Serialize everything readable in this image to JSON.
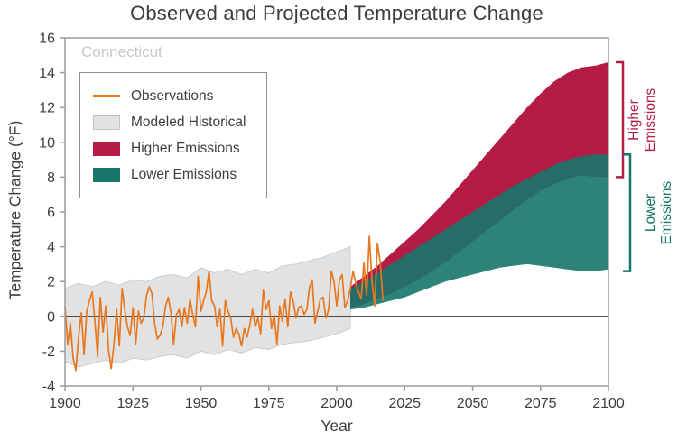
{
  "title": "Observed and Projected Temperature Change",
  "region": "Connecticut",
  "axes": {
    "xlabel": "Year",
    "ylabel": "Temperature Change (°F)"
  },
  "legend": {
    "items": [
      {
        "label": "Observations",
        "type": "line",
        "color": "#e87820"
      },
      {
        "label": "Modeled Historical",
        "type": "fill",
        "color": "#e2e2e2"
      },
      {
        "label": "Higher Emissions",
        "type": "fill",
        "color": "#b41c45"
      },
      {
        "label": "Lower Emissions",
        "type": "fill",
        "color": "#17756a"
      }
    ]
  },
  "chart_data": {
    "type": "area",
    "title": "Observed and Projected Temperature Change",
    "xlabel": "Year",
    "ylabel": "Temperature Change (°F)",
    "xlim": [
      1900,
      2100
    ],
    "ylim": [
      -4,
      16
    ],
    "xticks": [
      1900,
      1925,
      1950,
      1975,
      2000,
      2025,
      2050,
      2075,
      2100
    ],
    "yticks": [
      -4,
      -2,
      0,
      2,
      4,
      6,
      8,
      10,
      12,
      14,
      16
    ],
    "grid": false,
    "legend_position": "upper-left",
    "series": [
      {
        "name": "Modeled Historical",
        "type": "band",
        "color": "#e2e2e2",
        "border": "#cdcdcd",
        "opacity": 1,
        "x_start": 1900,
        "x_step": 5,
        "upper": [
          1.6,
          1.9,
          1.7,
          2.0,
          1.8,
          2.1,
          2.0,
          2.3,
          2.4,
          2.2,
          2.8,
          2.5,
          2.7,
          2.4,
          2.7,
          2.5,
          2.9,
          3.0,
          3.2,
          3.4,
          3.7,
          4.0
        ],
        "lower": [
          -2.6,
          -2.9,
          -2.7,
          -2.5,
          -2.7,
          -2.4,
          -2.5,
          -2.3,
          -2.2,
          -2.4,
          -2.0,
          -2.2,
          -1.9,
          -2.1,
          -1.8,
          -1.9,
          -1.6,
          -1.5,
          -1.4,
          -1.2,
          -1.0,
          -0.7
        ]
      },
      {
        "name": "Higher Emissions",
        "type": "band",
        "color": "#b41c45",
        "opacity": 1,
        "x_start": 2005,
        "x_step": 5,
        "upper": [
          1.7,
          2.3,
          2.9,
          3.6,
          4.3,
          5.0,
          5.8,
          6.6,
          7.5,
          8.4,
          9.3,
          10.2,
          11.1,
          12.0,
          12.8,
          13.5,
          14.0,
          14.3,
          14.4,
          14.6
        ],
        "lower": [
          0.5,
          0.7,
          1.0,
          1.3,
          1.7,
          2.1,
          2.6,
          3.1,
          3.7,
          4.3,
          4.9,
          5.5,
          6.1,
          6.7,
          7.2,
          7.6,
          7.9,
          8.1,
          8.0,
          8.0
        ]
      },
      {
        "name": "Lower Emissions",
        "type": "band",
        "color": "#17756a",
        "opacity": 0.9,
        "x_start": 2005,
        "x_step": 5,
        "upper": [
          1.6,
          2.0,
          2.5,
          3.0,
          3.5,
          4.0,
          4.5,
          5.0,
          5.5,
          6.0,
          6.5,
          7.0,
          7.5,
          7.9,
          8.3,
          8.7,
          9.0,
          9.2,
          9.3,
          9.3
        ],
        "lower": [
          0.4,
          0.5,
          0.7,
          0.9,
          1.1,
          1.4,
          1.7,
          2.0,
          2.2,
          2.4,
          2.6,
          2.8,
          2.9,
          3.0,
          2.9,
          2.8,
          2.7,
          2.6,
          2.6,
          2.7
        ]
      },
      {
        "name": "Observations",
        "type": "line",
        "color": "#e87820",
        "x_start": 1900,
        "x_step": 1,
        "values": [
          0.6,
          -1.6,
          -0.4,
          -2.4,
          -3.1,
          -1.2,
          0.2,
          -2.2,
          0.3,
          0.9,
          1.4,
          -0.3,
          -2.3,
          1.1,
          -0.9,
          0.6,
          -1.9,
          -3.0,
          -1.6,
          0.4,
          -1.7,
          1.6,
          0.4,
          -0.6,
          -1.1,
          0.5,
          -1.6,
          0.3,
          -0.4,
          -0.1,
          1.2,
          1.7,
          1.3,
          -0.4,
          -1.3,
          -1.1,
          -0.6,
          0.6,
          1.1,
          0.2,
          -1.6,
          0.1,
          0.4,
          -0.6,
          0.5,
          -0.4,
          1.0,
          0.1,
          -0.6,
          2.3,
          0.3,
          0.9,
          1.4,
          2.6,
          0.9,
          0.6,
          -0.6,
          0.4,
          -1.7,
          0.9,
          0.3,
          -0.1,
          -1.2,
          -0.7,
          -1.0,
          -1.7,
          -0.7,
          -1.2,
          -0.5,
          0.4,
          -0.6,
          -0.1,
          -1.0,
          1.5,
          0.4,
          0.9,
          -0.7,
          0.1,
          -1.6,
          0.6,
          -0.3,
          1.0,
          -0.6,
          1.4,
          0.9,
          -0.1,
          0.5,
          0.6,
          0.1,
          0.4,
          1.7,
          2.1,
          -0.4,
          0.3,
          1.0,
          1.1,
          -0.1,
          0.4,
          2.6,
          2.0,
          0.6,
          2.1,
          2.4,
          0.5,
          0.9,
          1.6,
          2.6,
          1.9,
          1.4,
          1.0,
          3.1,
          1.2,
          4.6,
          2.0,
          0.6,
          4.2,
          3.1,
          0.9
        ]
      }
    ],
    "annotations": [
      {
        "label": "Higher\nEmissions",
        "color": "#b41c45",
        "y_range": [
          8.0,
          14.6
        ]
      },
      {
        "label": "Lower\nEmissions",
        "color": "#17756a",
        "y_range": [
          2.6,
          9.3
        ]
      }
    ]
  }
}
